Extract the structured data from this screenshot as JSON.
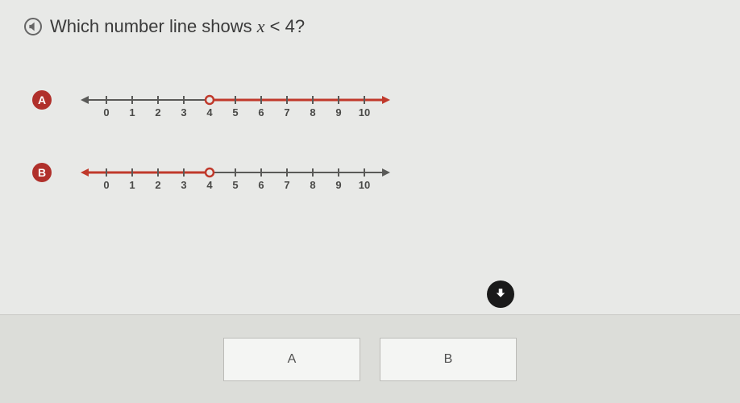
{
  "question": {
    "prefix": "Which number line shows ",
    "variable": "x",
    "relation": " < 4?"
  },
  "colors": {
    "badge": "#b0302b",
    "line_base": "#5a5a58",
    "line_highlight": "#c0392b",
    "tick_label": "#4a4a48",
    "badge_text": "#ffffff",
    "answer_bg": "#f4f5f3",
    "answer_border": "#bcbcb8",
    "panel_bg": "#dcddd9"
  },
  "options": [
    {
      "label": "A",
      "ticks": [
        0,
        1,
        2,
        3,
        4,
        5,
        6,
        7,
        8,
        9,
        10
      ],
      "highlight_from": 4,
      "highlight_to": 11,
      "open_circle_at": 4,
      "arrow_dir": "right",
      "arrow_highlight": true,
      "left_arrow_highlight": false
    },
    {
      "label": "B",
      "ticks": [
        0,
        1,
        2,
        3,
        4,
        5,
        6,
        7,
        8,
        9,
        10
      ],
      "highlight_from": -1,
      "highlight_to": 4,
      "open_circle_at": 4,
      "arrow_dir": "left",
      "arrow_highlight": true,
      "left_arrow_highlight": true
    }
  ],
  "answers": [
    {
      "label": "A"
    },
    {
      "label": "B"
    }
  ]
}
